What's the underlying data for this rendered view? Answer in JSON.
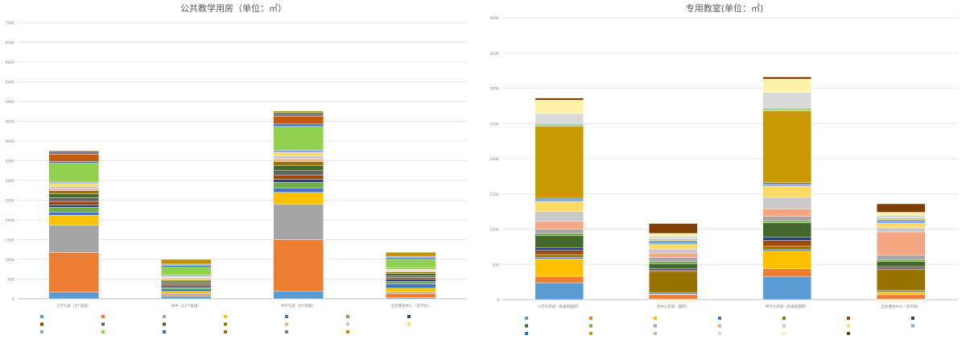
{
  "chart_data": [
    {
      "type": "bar",
      "stacked": true,
      "title": "公共教学用房（单位：㎡）",
      "xlabel": "",
      "ylabel": "",
      "ylim": [
        0,
        7000
      ],
      "yticks": [
        0,
        500,
        1000,
        1500,
        2000,
        2500,
        3000,
        3500,
        4000,
        4500,
        5000,
        5500,
        6000,
        6500,
        7000
      ],
      "grid": true,
      "legend_position": "bottom",
      "categories": [
        "小学九班（9个班级）",
        "初中（12个班级）",
        "中学九班（9个班级）",
        "全民健身中心（含学校）"
      ],
      "series": [
        {
          "name": "",
          "color": "#5b9bd5",
          "values": [
            170,
            60,
            200,
            30
          ]
        },
        {
          "name": "",
          "color": "#ed7d31",
          "values": [
            1000,
            40,
            1300,
            100
          ]
        },
        {
          "name": "",
          "color": "#a5a5a5",
          "values": [
            700,
            40,
            900,
            40
          ]
        },
        {
          "name": "",
          "color": "#ffc000",
          "values": [
            250,
            50,
            300,
            100
          ]
        },
        {
          "name": "",
          "color": "#4472c4",
          "values": [
            80,
            60,
            100,
            110
          ]
        },
        {
          "name": "",
          "color": "#70ad47",
          "values": [
            120,
            40,
            150,
            60
          ]
        },
        {
          "name": "",
          "color": "#264478",
          "values": [
            60,
            40,
            80,
            60
          ]
        },
        {
          "name": "",
          "color": "#9e480e",
          "values": [
            90,
            40,
            110,
            40
          ]
        },
        {
          "name": "",
          "color": "#636363",
          "values": [
            90,
            40,
            110,
            40
          ]
        },
        {
          "name": "",
          "color": "#43682b",
          "values": [
            100,
            40,
            130,
            60
          ]
        },
        {
          "name": "",
          "color": "#997300",
          "values": [
            80,
            30,
            100,
            40
          ]
        },
        {
          "name": "",
          "color": "#f4b183",
          "values": [
            50,
            30,
            70,
            20
          ]
        },
        {
          "name": "",
          "color": "#c9c9c9",
          "values": [
            60,
            30,
            80,
            20
          ]
        },
        {
          "name": "",
          "color": "#ffd966",
          "values": [
            70,
            30,
            80,
            30
          ]
        },
        {
          "name": "",
          "color": "#8faadc",
          "values": [
            40,
            30,
            60,
            30
          ]
        },
        {
          "name": "",
          "color": "#92d050",
          "values": [
            480,
            200,
            600,
            220
          ]
        },
        {
          "name": "",
          "color": "#2e75b6",
          "values": [
            40,
            40,
            60,
            40
          ]
        },
        {
          "name": "",
          "color": "#c55a11",
          "values": [
            180,
            20,
            200,
            20
          ]
        },
        {
          "name": "",
          "color": "#7b7b7b",
          "values": [
            80,
            20,
            100,
            20
          ]
        },
        {
          "name": "",
          "color": "#bf9000",
          "values": [
            20,
            120,
            30,
            100
          ]
        }
      ]
    },
    {
      "type": "bar",
      "stacked": true,
      "title": "专用教室(单位：㎡)",
      "xlabel": "",
      "ylabel": "",
      "ylim": [
        0,
        4000
      ],
      "yticks": [
        0,
        500,
        1000,
        1500,
        2000,
        2500,
        3000,
        3500,
        4000
      ],
      "grid": true,
      "legend_position": "bottom",
      "categories": [
        "小学九年级（各类别面积）",
        "初中九年级（面积）",
        "中学九年级（各类别面积）",
        "全民健身中心（含学校）"
      ],
      "series": [
        {
          "name": "",
          "color": "#5b9bd5",
          "values": [
            240,
            10,
            330,
            10
          ]
        },
        {
          "name": "",
          "color": "#ed7d31",
          "values": [
            90,
            60,
            110,
            60
          ]
        },
        {
          "name": "",
          "color": "#ffc000",
          "values": [
            250,
            10,
            250,
            40
          ]
        },
        {
          "name": "",
          "color": "#4472c4",
          "values": [
            20,
            20,
            20,
            20
          ]
        },
        {
          "name": "",
          "color": "#997300",
          "values": [
            40,
            300,
            50,
            300
          ]
        },
        {
          "name": "",
          "color": "#9e480e",
          "values": [
            60,
            20,
            80,
            20
          ]
        },
        {
          "name": "",
          "color": "#264478",
          "values": [
            40,
            20,
            50,
            20
          ]
        },
        {
          "name": "",
          "color": "#43682b",
          "values": [
            170,
            70,
            200,
            70
          ]
        },
        {
          "name": "",
          "color": "#70ad47",
          "values": [
            30,
            30,
            30,
            30
          ]
        },
        {
          "name": "",
          "color": "#a5a5a5",
          "values": [
            60,
            60,
            60,
            60
          ]
        },
        {
          "name": "",
          "color": "#f4a582",
          "values": [
            110,
            60,
            110,
            330
          ]
        },
        {
          "name": "",
          "color": "#c9c9c9",
          "values": [
            140,
            60,
            160,
            60
          ]
        },
        {
          "name": "",
          "color": "#ffd966",
          "values": [
            140,
            60,
            160,
            60
          ]
        },
        {
          "name": "",
          "color": "#8faadc",
          "values": [
            30,
            30,
            30,
            30
          ]
        },
        {
          "name": "",
          "color": "#2e75b6",
          "values": [
            20,
            20,
            20,
            20
          ]
        },
        {
          "name": "",
          "color": "#c99a00",
          "values": [
            1020,
            10,
            1020,
            10
          ]
        },
        {
          "name": "",
          "color": "#a9d18e",
          "values": [
            40,
            20,
            40,
            20
          ]
        },
        {
          "name": "",
          "color": "#d9d9d9",
          "values": [
            140,
            40,
            220,
            40
          ]
        },
        {
          "name": "",
          "color": "#fff2a8",
          "values": [
            190,
            40,
            190,
            40
          ]
        },
        {
          "name": "",
          "color": "#7f3f00",
          "values": [
            30,
            140,
            30,
            120
          ]
        }
      ]
    }
  ]
}
